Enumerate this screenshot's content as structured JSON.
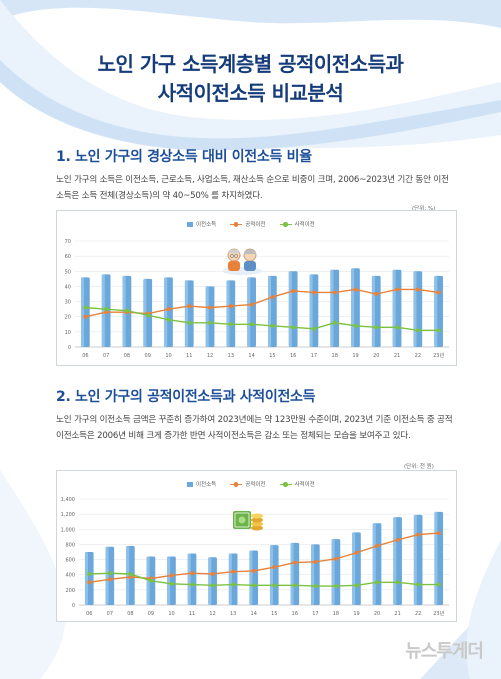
{
  "title": {
    "line1": "노인 가구 소득계층별 공적이전소득과",
    "line2": "사적이전소득 비교분석"
  },
  "section1": {
    "number": "1.",
    "heading": "노인 가구의 경상소득 대비 이전소득 비율",
    "paragraph": "노인 가구의 소득은 이전소득, 근로소득, 사업소득, 재산소득 순으로 비중이 크며, 2006~2023년 기간 동안 이전소득은 소득 전체(경상소득)의 약 40~50% 를 차지하였다.",
    "unit": "(단위: %)"
  },
  "section2": {
    "number": "2.",
    "heading": "노인 가구의 공적이전소득과 사적이전소득",
    "paragraph": "노인 가구의 이전소득 금액은 꾸준히 증가하여 2023년에는 약 123만원 수준이며, 2023년 기준 이전소득 중 공적이전소득은 2006년 비해 크게 증가한 반면 사적이전소득은 감소 또는 정체되는 모습을 보여주고 있다.",
    "unit": "(단위: 천 원)"
  },
  "watermark": "뉴스투게더",
  "colors": {
    "bar": "#6aa8dc",
    "public": "#e8823a",
    "private": "#7cc242",
    "title": "#153b7a",
    "heading": "#1c4e9a"
  },
  "icons": {
    "chart1": "elderly-couple-icon",
    "chart2": "money-stack-icon"
  },
  "chart_data": [
    {
      "type": "bar",
      "legend": [
        "이전소득",
        "공적이전",
        "사적이전"
      ],
      "legend_position": "top-center",
      "categories": [
        "06",
        "07",
        "08",
        "09",
        "10",
        "11",
        "12",
        "13",
        "14",
        "15",
        "16",
        "17",
        "18",
        "19",
        "20",
        "21",
        "22",
        "23년"
      ],
      "ylim": [
        0,
        70
      ],
      "yticks": [
        "0",
        "10",
        "20",
        "30",
        "40",
        "50",
        "60",
        "70"
      ],
      "grid": true,
      "series": [
        {
          "name": "이전소득",
          "kind": "bar",
          "values": [
            46,
            48,
            47,
            45,
            46,
            44,
            40,
            44,
            46,
            47,
            50,
            48,
            51,
            52,
            47,
            51,
            50,
            47
          ]
        },
        {
          "name": "공적이전",
          "kind": "line",
          "values": [
            20,
            23,
            23,
            22,
            25,
            27,
            26,
            27,
            28,
            33,
            37,
            36,
            36,
            38,
            35,
            38,
            38,
            36
          ]
        },
        {
          "name": "사적이전",
          "kind": "line",
          "values": [
            26,
            25,
            24,
            21,
            18,
            16,
            16,
            15,
            15,
            14,
            13,
            12,
            16,
            14,
            13,
            13,
            11,
            11
          ]
        }
      ]
    },
    {
      "type": "bar",
      "legend": [
        "이전소득",
        "공적이전",
        "사적이전"
      ],
      "legend_position": "top-center",
      "categories": [
        "06",
        "07",
        "08",
        "09",
        "10",
        "11",
        "12",
        "13",
        "14",
        "15",
        "16",
        "17",
        "18",
        "19",
        "20",
        "21",
        "22",
        "23년"
      ],
      "ylim": [
        0,
        1400
      ],
      "yticks": [
        "0",
        "200",
        "400",
        "600",
        "800",
        "1,000",
        "1,200",
        "1,400"
      ],
      "grid": true,
      "series": [
        {
          "name": "이전소득",
          "kind": "bar",
          "values": [
            700,
            770,
            780,
            640,
            640,
            680,
            630,
            680,
            720,
            790,
            820,
            800,
            870,
            960,
            1080,
            1160,
            1190,
            1230
          ]
        },
        {
          "name": "공적이전",
          "kind": "line",
          "values": [
            300,
            340,
            370,
            350,
            390,
            420,
            410,
            440,
            450,
            500,
            560,
            570,
            610,
            690,
            780,
            860,
            930,
            950
          ]
        },
        {
          "name": "사적이전",
          "kind": "line",
          "values": [
            410,
            420,
            410,
            320,
            280,
            270,
            260,
            270,
            260,
            260,
            260,
            250,
            250,
            260,
            300,
            300,
            270,
            270
          ]
        }
      ]
    }
  ]
}
